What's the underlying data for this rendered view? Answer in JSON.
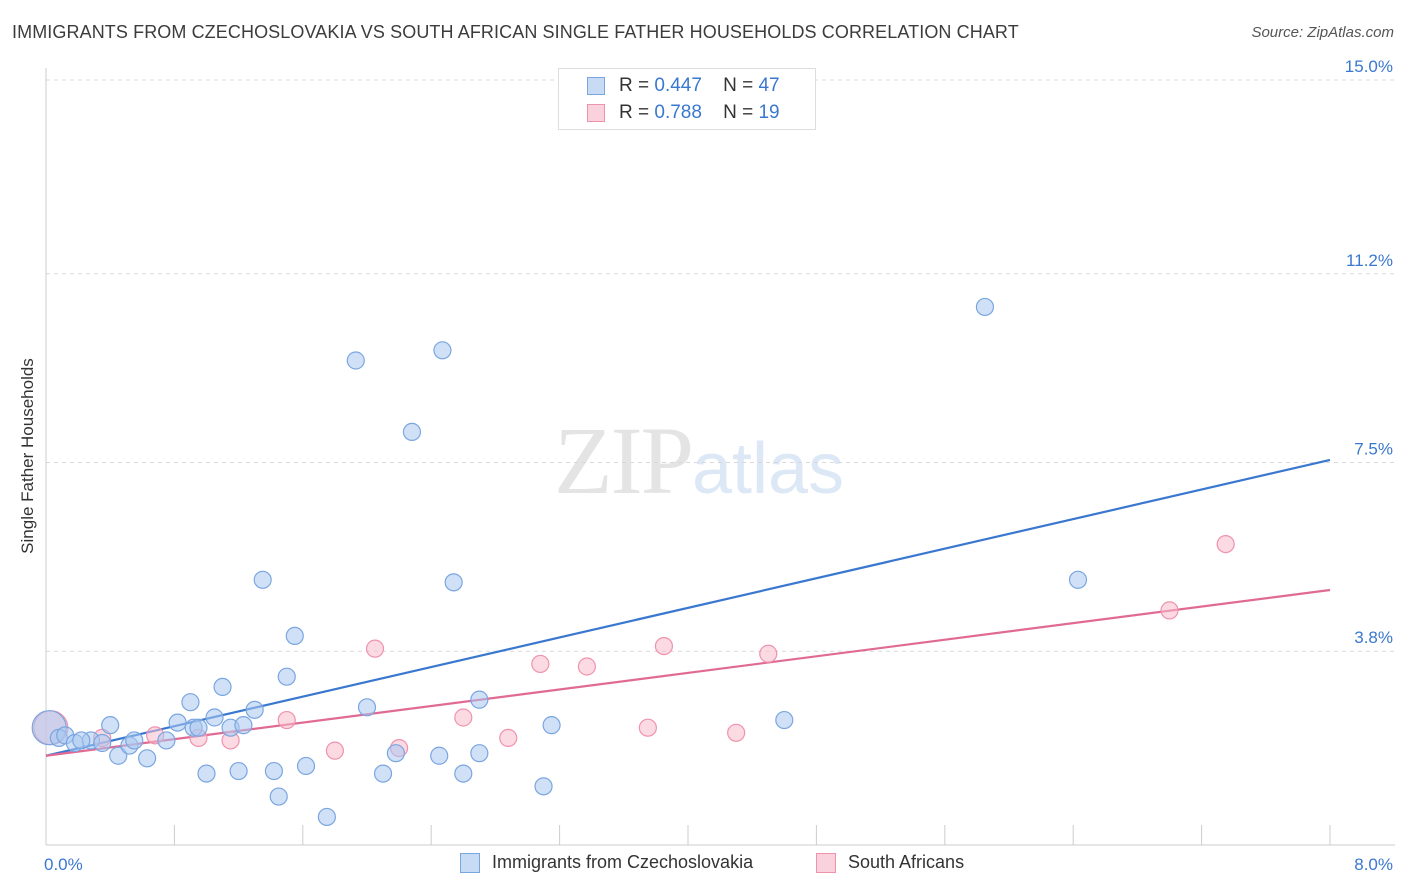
{
  "header": {
    "title": "IMMIGRANTS FROM CZECHOSLOVAKIA VS SOUTH AFRICAN SINGLE FATHER HOUSEHOLDS CORRELATION CHART",
    "source": "Source: ZipAtlas.com"
  },
  "watermark": {
    "zip": "ZIP",
    "atlas": "atlas"
  },
  "legend": {
    "rows": [
      {
        "r_label": "R =",
        "r_value": "0.447",
        "n_label": "N =",
        "n_value": "47"
      },
      {
        "r_label": "R =",
        "r_value": "0.788",
        "n_label": "N =",
        "n_value": "19"
      }
    ]
  },
  "bottom_legend": [
    {
      "label": "Immigrants from Czechoslovakia"
    },
    {
      "label": "South Africans"
    }
  ],
  "colors": {
    "blue_fill": "#a9c8f0",
    "blue_stroke": "#7aa6e0",
    "blue_line": "#3a78d0",
    "pink_fill": "#f7bccd",
    "pink_stroke": "#ef93ad",
    "pink_line": "#e06a94",
    "grid": "#d9d9d9",
    "axis_text": "#3a78d0"
  },
  "chart_data": {
    "type": "scatter",
    "title": "IMMIGRANTS FROM CZECHOSLOVAKIA VS SOUTH AFRICAN SINGLE FATHER HOUSEHOLDS CORRELATION CHART",
    "xlabel": "",
    "ylabel": "Single Father Households",
    "xlim": [
      0,
      8.0
    ],
    "ylim": [
      0,
      15.0
    ],
    "x_tick_labels": [
      "0.0%",
      "8.0%"
    ],
    "y_ticks": [
      3.8,
      7.5,
      11.2,
      15.0
    ],
    "y_tick_labels": [
      "3.8%",
      "7.5%",
      "11.2%",
      "15.0%"
    ],
    "grid": true,
    "legend_position": "top-center",
    "series": [
      {
        "name": "Immigrants from Czechoslovakia",
        "r": 0.447,
        "n": 47,
        "trend": {
          "x": [
            0.0,
            8.0
          ],
          "y": [
            1.75,
            7.55
          ]
        },
        "points": [
          {
            "x": 0.02,
            "y": 2.3,
            "big": true
          },
          {
            "x": 0.08,
            "y": 2.1
          },
          {
            "x": 0.12,
            "y": 2.15
          },
          {
            "x": 0.18,
            "y": 2.0
          },
          {
            "x": 0.28,
            "y": 2.05
          },
          {
            "x": 0.4,
            "y": 2.35
          },
          {
            "x": 0.35,
            "y": 2.0
          },
          {
            "x": 0.45,
            "y": 1.75
          },
          {
            "x": 0.52,
            "y": 1.95
          },
          {
            "x": 0.63,
            "y": 1.7
          },
          {
            "x": 0.75,
            "y": 2.05
          },
          {
            "x": 0.82,
            "y": 2.4
          },
          {
            "x": 0.92,
            "y": 2.3
          },
          {
            "x": 0.9,
            "y": 2.8
          },
          {
            "x": 1.0,
            "y": 1.4
          },
          {
            "x": 1.05,
            "y": 2.5
          },
          {
            "x": 1.1,
            "y": 3.1
          },
          {
            "x": 1.15,
            "y": 2.3
          },
          {
            "x": 1.2,
            "y": 1.45
          },
          {
            "x": 1.23,
            "y": 2.35
          },
          {
            "x": 1.3,
            "y": 2.65
          },
          {
            "x": 1.35,
            "y": 5.2
          },
          {
            "x": 1.42,
            "y": 1.45
          },
          {
            "x": 1.45,
            "y": 0.95
          },
          {
            "x": 1.5,
            "y": 3.3
          },
          {
            "x": 1.55,
            "y": 4.1
          },
          {
            "x": 1.62,
            "y": 1.55
          },
          {
            "x": 1.75,
            "y": 0.55
          },
          {
            "x": 1.93,
            "y": 9.5
          },
          {
            "x": 2.0,
            "y": 2.7
          },
          {
            "x": 2.1,
            "y": 1.4
          },
          {
            "x": 2.18,
            "y": 1.8
          },
          {
            "x": 2.28,
            "y": 8.1
          },
          {
            "x": 2.45,
            "y": 1.75
          },
          {
            "x": 2.47,
            "y": 9.7
          },
          {
            "x": 2.54,
            "y": 5.15
          },
          {
            "x": 2.6,
            "y": 1.4
          },
          {
            "x": 2.7,
            "y": 2.85
          },
          {
            "x": 2.7,
            "y": 1.8
          },
          {
            "x": 3.1,
            "y": 1.15
          },
          {
            "x": 3.15,
            "y": 2.35
          },
          {
            "x": 4.6,
            "y": 2.45
          },
          {
            "x": 5.85,
            "y": 10.55
          },
          {
            "x": 6.43,
            "y": 5.2
          },
          {
            "x": 0.95,
            "y": 2.3
          },
          {
            "x": 0.55,
            "y": 2.05
          },
          {
            "x": 0.22,
            "y": 2.05
          }
        ]
      },
      {
        "name": "South Africans",
        "r": 0.788,
        "n": 19,
        "trend": {
          "x": [
            0.0,
            8.0
          ],
          "y": [
            1.75,
            5.0
          ]
        },
        "points": [
          {
            "x": 0.03,
            "y": 2.3,
            "big": true
          },
          {
            "x": 0.35,
            "y": 2.1
          },
          {
            "x": 0.68,
            "y": 2.15
          },
          {
            "x": 0.95,
            "y": 2.1
          },
          {
            "x": 1.15,
            "y": 2.05
          },
          {
            "x": 1.5,
            "y": 2.45
          },
          {
            "x": 1.8,
            "y": 1.85
          },
          {
            "x": 2.05,
            "y": 3.85
          },
          {
            "x": 2.2,
            "y": 1.9
          },
          {
            "x": 2.6,
            "y": 2.5
          },
          {
            "x": 2.88,
            "y": 2.1
          },
          {
            "x": 3.08,
            "y": 3.55
          },
          {
            "x": 3.37,
            "y": 3.5
          },
          {
            "x": 3.75,
            "y": 2.3
          },
          {
            "x": 3.85,
            "y": 3.9
          },
          {
            "x": 4.3,
            "y": 2.2
          },
          {
            "x": 4.5,
            "y": 3.75
          },
          {
            "x": 7.0,
            "y": 4.6
          },
          {
            "x": 7.35,
            "y": 5.9
          }
        ]
      }
    ]
  }
}
